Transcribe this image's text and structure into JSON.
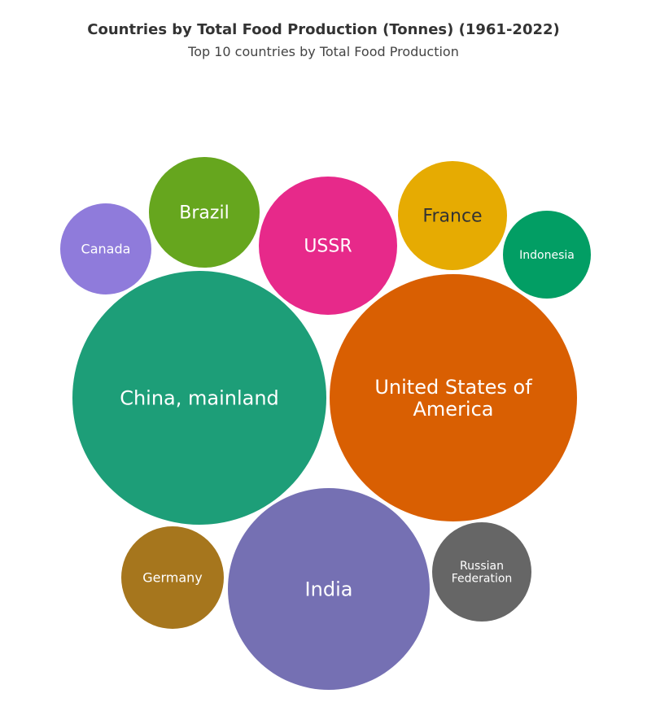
{
  "chart_data": {
    "type": "bubble",
    "title": "Countries by Total Food Production (Tonnes) (1961-2022)",
    "subtitle": "Top 10 countries by Total Food Production",
    "series": [
      {
        "name": "China, mainland",
        "color": "#1d9e78"
      },
      {
        "name": "United States of America",
        "color": "#d95f02"
      },
      {
        "name": "India",
        "color": "#7570b3"
      },
      {
        "name": "USSR",
        "color": "#e7298a"
      },
      {
        "name": "Brazil",
        "color": "#66a61e"
      },
      {
        "name": "France",
        "color": "#e6ab02"
      },
      {
        "name": "Germany",
        "color": "#a6761d"
      },
      {
        "name": "Russian Federation",
        "color": "#666666"
      },
      {
        "name": "Canada",
        "color": "#8f7bdb"
      },
      {
        "name": "Indonesia",
        "color": "#029e64"
      }
    ]
  }
}
